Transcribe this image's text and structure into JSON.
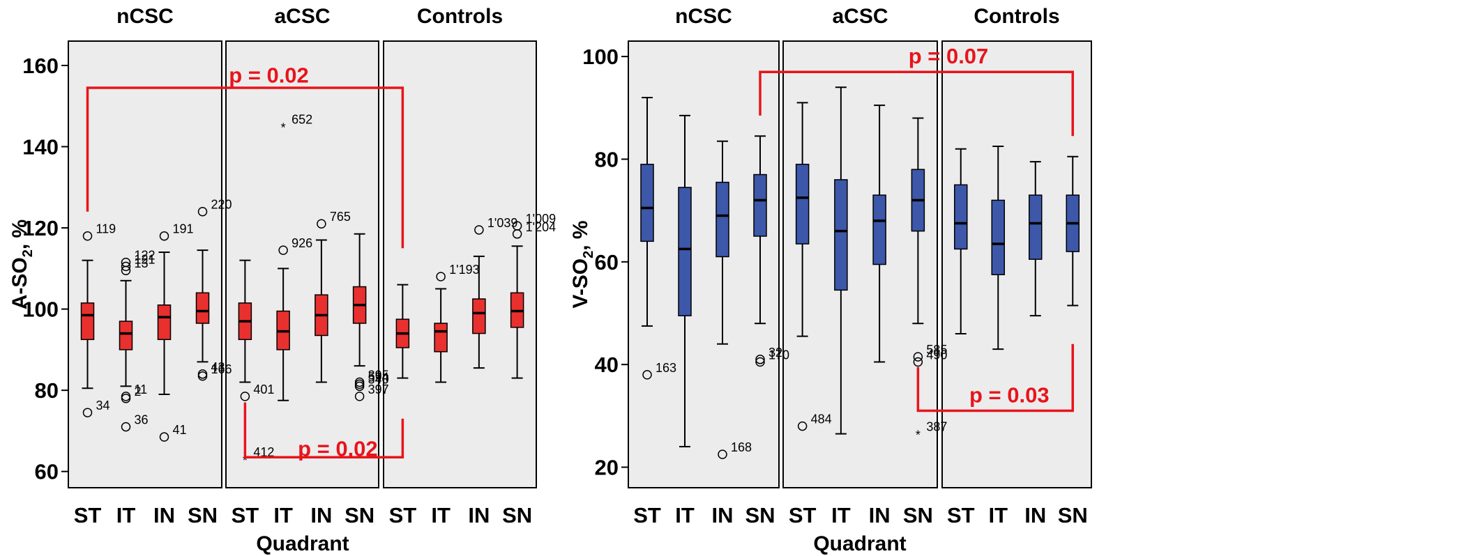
{
  "chart_data": [
    {
      "type": "boxplot",
      "ylabel": "A-SO",
      "ylabel_sub": "2",
      "ylabel_suffix": ", %",
      "xlabel": "Quadrant",
      "ylim": [
        56,
        166
      ],
      "yticks": [
        60,
        80,
        100,
        120,
        140,
        160
      ],
      "box_color": "#e8302f",
      "groups": [
        {
          "name": "nCSC",
          "boxes": [
            {
              "cat": "ST",
              "min": 80.5,
              "q1": 92.5,
              "median": 98.5,
              "q3": 101.5,
              "max": 112,
              "outliers": [
                {
                  "y": 118,
                  "label": "119",
                  "mark": "o"
                },
                {
                  "y": 74.5,
                  "label": "34",
                  "mark": "o"
                }
              ]
            },
            {
              "cat": "IT",
              "min": 81,
              "q1": 90,
              "median": 94,
              "q3": 97,
              "max": 107,
              "outliers": [
                {
                  "y": 111.5,
                  "label": "122",
                  "mark": "o"
                },
                {
                  "y": 110.5,
                  "label": "121",
                  "mark": "o"
                },
                {
                  "y": 109.5,
                  "label": "13",
                  "mark": "o"
                },
                {
                  "y": 78.5,
                  "label": "11",
                  "mark": "o"
                },
                {
                  "y": 78,
                  "label": "2",
                  "mark": "o"
                },
                {
                  "y": 71,
                  "label": "36",
                  "mark": "o"
                }
              ]
            },
            {
              "cat": "IN",
              "min": 79,
              "q1": 92.5,
              "median": 98,
              "q3": 101,
              "max": 114,
              "outliers": [
                {
                  "y": 118,
                  "label": "191",
                  "mark": "o"
                },
                {
                  "y": 68.5,
                  "label": "41",
                  "mark": "o"
                }
              ]
            },
            {
              "cat": "SN",
              "min": 87,
              "q1": 96.5,
              "median": 99.5,
              "q3": 104,
              "max": 114.5,
              "outliers": [
                {
                  "y": 124,
                  "label": "220",
                  "mark": "o"
                },
                {
                  "y": 84,
                  "label": "43",
                  "mark": "o"
                },
                {
                  "y": 83.5,
                  "label": "166",
                  "mark": "o"
                }
              ]
            }
          ]
        },
        {
          "name": "aCSC",
          "boxes": [
            {
              "cat": "ST",
              "min": 82,
              "q1": 92.5,
              "median": 97,
              "q3": 101.5,
              "max": 112,
              "outliers": [
                {
                  "y": 78.5,
                  "label": "401",
                  "mark": "o"
                },
                {
                  "y": 63,
                  "label": "412",
                  "mark": "*"
                }
              ]
            },
            {
              "cat": "IT",
              "min": 77.5,
              "q1": 90,
              "median": 94.5,
              "q3": 99.5,
              "max": 110,
              "outliers": [
                {
                  "y": 145,
                  "label": "652",
                  "mark": "*"
                },
                {
                  "y": 114.5,
                  "label": "926",
                  "mark": "o"
                }
              ]
            },
            {
              "cat": "IN",
              "min": 82,
              "q1": 93.5,
              "median": 98.5,
              "q3": 103.5,
              "max": 117,
              "outliers": [
                {
                  "y": 121,
                  "label": "765",
                  "mark": "o"
                }
              ]
            },
            {
              "cat": "SN",
              "min": 86,
              "q1": 96.5,
              "median": 101,
              "q3": 105.5,
              "max": 118.5,
              "outliers": [
                {
                  "y": 82,
                  "label": "395",
                  "mark": "o"
                },
                {
                  "y": 81.5,
                  "label": "594",
                  "mark": "o"
                },
                {
                  "y": 81,
                  "label": "340",
                  "mark": "o"
                },
                {
                  "y": 78.5,
                  "label": "397",
                  "mark": "o"
                }
              ]
            }
          ]
        },
        {
          "name": "Controls",
          "boxes": [
            {
              "cat": "ST",
              "min": 83,
              "q1": 90.5,
              "median": 94,
              "q3": 97.5,
              "max": 106,
              "outliers": []
            },
            {
              "cat": "IT",
              "min": 82,
              "q1": 89.5,
              "median": 94.5,
              "q3": 96.5,
              "max": 105,
              "outliers": [
                {
                  "y": 108,
                  "label": "1'193",
                  "mark": "o"
                }
              ]
            },
            {
              "cat": "IN",
              "min": 85.5,
              "q1": 94,
              "median": 99,
              "q3": 102.5,
              "max": 113,
              "outliers": [
                {
                  "y": 119.5,
                  "label": "1'039",
                  "mark": "o"
                }
              ]
            },
            {
              "cat": "SN",
              "min": 83,
              "q1": 95.5,
              "median": 99.5,
              "q3": 104,
              "max": 115.5,
              "outliers": [
                {
                  "y": 120.5,
                  "label": "1'009",
                  "mark": "o"
                },
                {
                  "y": 118.5,
                  "label": "1'204",
                  "mark": "o"
                }
              ]
            }
          ]
        }
      ],
      "annotations": [
        {
          "text": "p = 0.02",
          "side": "top",
          "from": [
            0,
            0
          ],
          "to": [
            2,
            0
          ],
          "ends": [
            124,
            115
          ],
          "line_y": 154.5,
          "text_y": 157.5
        },
        {
          "text": "p = 0.02",
          "side": "bottom",
          "from": [
            1,
            0
          ],
          "to": [
            2,
            0
          ],
          "ends": [
            77,
            73
          ],
          "line_y": 63.5,
          "text_y": 65.5
        }
      ]
    },
    {
      "type": "boxplot",
      "ylabel": "V-SO",
      "ylabel_sub": "2",
      "ylabel_suffix": ", %",
      "xlabel": "Quadrant",
      "ylim": [
        16,
        103
      ],
      "yticks": [
        20,
        40,
        60,
        80,
        100
      ],
      "box_color": "#3d57a9",
      "groups": [
        {
          "name": "nCSC",
          "boxes": [
            {
              "cat": "ST",
              "min": 47.5,
              "q1": 64,
              "median": 70.5,
              "q3": 79,
              "max": 92,
              "outliers": [
                {
                  "y": 38,
                  "label": "163",
                  "mark": "o"
                }
              ]
            },
            {
              "cat": "IT",
              "min": 24,
              "q1": 49.5,
              "median": 62.5,
              "q3": 74.5,
              "max": 88.5,
              "outliers": []
            },
            {
              "cat": "IN",
              "min": 44,
              "q1": 61,
              "median": 69,
              "q3": 75.5,
              "max": 83.5,
              "outliers": [
                {
                  "y": 22.5,
                  "label": "168",
                  "mark": "o"
                }
              ]
            },
            {
              "cat": "SN",
              "min": 48,
              "q1": 65,
              "median": 72,
              "q3": 77,
              "max": 84.5,
              "outliers": [
                {
                  "y": 41,
                  "label": "32",
                  "mark": "o"
                },
                {
                  "y": 40.5,
                  "label": "170",
                  "mark": "o"
                }
              ]
            }
          ]
        },
        {
          "name": "aCSC",
          "boxes": [
            {
              "cat": "ST",
              "min": 45.5,
              "q1": 63.5,
              "median": 72.5,
              "q3": 79,
              "max": 91,
              "outliers": [
                {
                  "y": 28,
                  "label": "484",
                  "mark": "o"
                }
              ]
            },
            {
              "cat": "IT",
              "min": 26.5,
              "q1": 54.5,
              "median": 66,
              "q3": 76,
              "max": 94,
              "outliers": []
            },
            {
              "cat": "IN",
              "min": 40.5,
              "q1": 59.5,
              "median": 68,
              "q3": 73,
              "max": 90.5,
              "outliers": []
            },
            {
              "cat": "SN",
              "min": 48,
              "q1": 66,
              "median": 72,
              "q3": 78,
              "max": 88,
              "outliers": [
                {
                  "y": 41.5,
                  "label": "585",
                  "mark": "o"
                },
                {
                  "y": 40.5,
                  "label": "490",
                  "mark": "o"
                },
                {
                  "y": 26.5,
                  "label": "387",
                  "mark": "*"
                }
              ]
            }
          ]
        },
        {
          "name": "Controls",
          "boxes": [
            {
              "cat": "ST",
              "min": 46,
              "q1": 62.5,
              "median": 67.5,
              "q3": 75,
              "max": 82,
              "outliers": []
            },
            {
              "cat": "IT",
              "min": 43,
              "q1": 57.5,
              "median": 63.5,
              "q3": 72,
              "max": 82.5,
              "outliers": []
            },
            {
              "cat": "IN",
              "min": 49.5,
              "q1": 60.5,
              "median": 67.5,
              "q3": 73,
              "max": 79.5,
              "outliers": []
            },
            {
              "cat": "SN",
              "min": 51.5,
              "q1": 62,
              "median": 67.5,
              "q3": 73,
              "max": 80.5,
              "outliers": []
            }
          ]
        }
      ],
      "annotations": [
        {
          "text": "p = 0.07",
          "side": "top",
          "from": [
            0,
            3
          ],
          "to": [
            2,
            3
          ],
          "ends": [
            88.5,
            84.5
          ],
          "line_y": 97,
          "text_y": 100
        },
        {
          "text": "p = 0.03",
          "side": "bottom",
          "from": [
            1,
            3
          ],
          "to": [
            2,
            3
          ],
          "ends": [
            39.5,
            44
          ],
          "line_y": 31,
          "text_y": 34
        }
      ]
    }
  ]
}
